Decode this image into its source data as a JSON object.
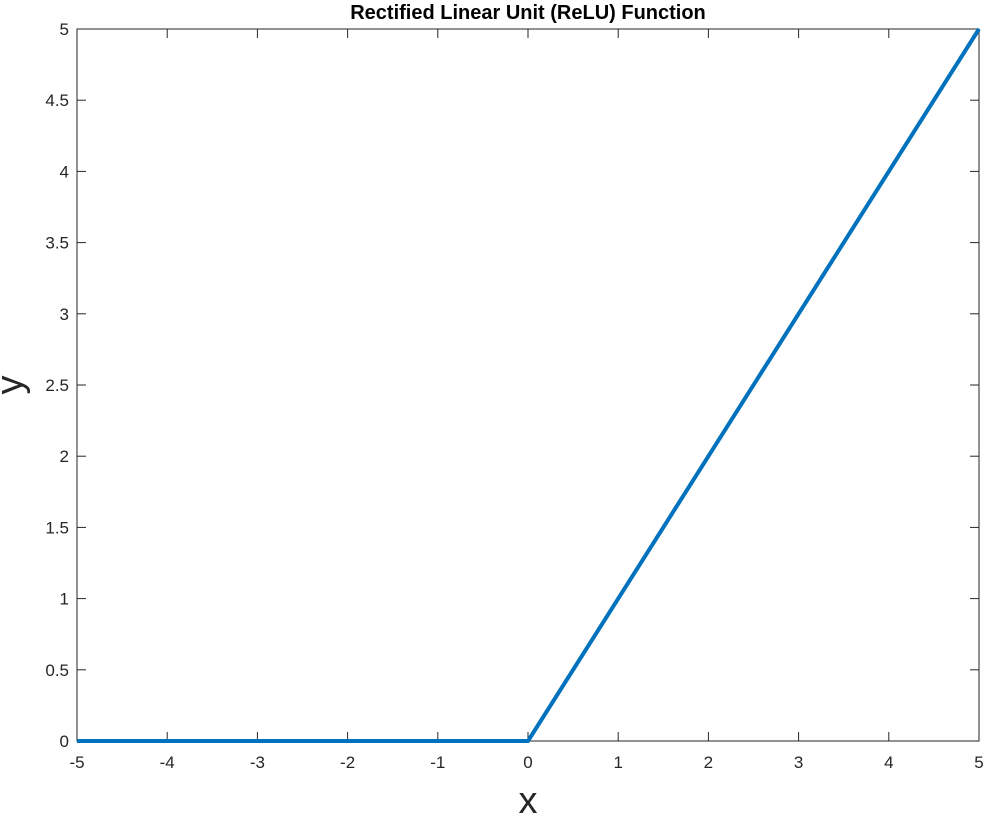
{
  "chart_data": {
    "type": "line",
    "title": "Rectified Linear Unit (ReLU) Function",
    "xlabel": "x",
    "ylabel": "y",
    "xlim": [
      -5,
      5
    ],
    "ylim": [
      0,
      5
    ],
    "xticks": [
      -5,
      -4,
      -3,
      -2,
      -1,
      0,
      1,
      2,
      3,
      4,
      5
    ],
    "yticks": [
      0,
      0.5,
      1,
      1.5,
      2,
      2.5,
      3,
      3.5,
      4,
      4.5,
      5
    ],
    "grid": false,
    "legend": "none",
    "series": [
      {
        "color": "#0072BD",
        "x": [
          -5,
          0,
          5
        ],
        "y": [
          0,
          0,
          5
        ]
      }
    ]
  }
}
